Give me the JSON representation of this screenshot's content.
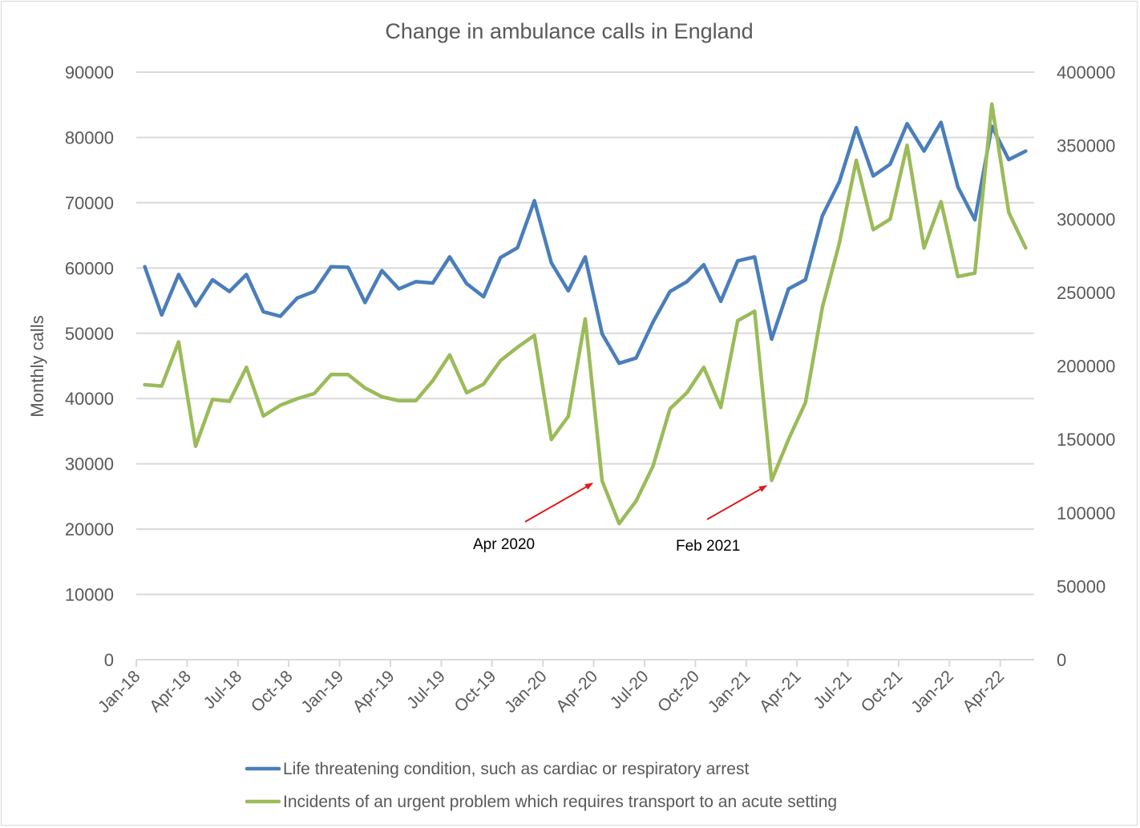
{
  "chart_data": {
    "type": "line",
    "title": "Change in ambulance calls in England",
    "xlabel": "",
    "ylabel": "Monthly calls",
    "y2label": "",
    "ylim": [
      0,
      90000
    ],
    "y2lim": [
      0,
      400000
    ],
    "yticks": [
      "0",
      "10000",
      "20000",
      "30000",
      "40000",
      "50000",
      "60000",
      "70000",
      "80000",
      "90000"
    ],
    "y2ticks": [
      "0",
      "50000",
      "100000",
      "150000",
      "200000",
      "250000",
      "300000",
      "350000",
      "400000"
    ],
    "grid": true,
    "legend": "bottom",
    "xtick_labels": [
      "Jan-18",
      "Apr-18",
      "Jul-18",
      "Oct-18",
      "Jan-19",
      "Apr-19",
      "Jul-19",
      "Oct-19",
      "Jan-20",
      "Apr-20",
      "Jul-20",
      "Oct-20",
      "Jan-21",
      "Apr-21",
      "Jul-21",
      "Oct-21",
      "Jan-22",
      "Apr-22"
    ],
    "x": [
      "Jan-18",
      "Feb-18",
      "Mar-18",
      "Apr-18",
      "May-18",
      "Jun-18",
      "Jul-18",
      "Aug-18",
      "Sep-18",
      "Oct-18",
      "Nov-18",
      "Dec-18",
      "Jan-19",
      "Feb-19",
      "Mar-19",
      "Apr-19",
      "May-19",
      "Jun-19",
      "Jul-19",
      "Aug-19",
      "Sep-19",
      "Oct-19",
      "Nov-19",
      "Dec-19",
      "Jan-20",
      "Feb-20",
      "Mar-20",
      "Apr-20",
      "May-20",
      "Jun-20",
      "Jul-20",
      "Aug-20",
      "Sep-20",
      "Oct-20",
      "Nov-20",
      "Dec-20",
      "Jan-21",
      "Feb-21",
      "Mar-21",
      "Apr-21",
      "May-21",
      "Jun-21",
      "Jul-21",
      "Aug-21",
      "Sep-21",
      "Oct-21",
      "Nov-21",
      "Dec-21",
      "Jan-22",
      "Feb-22",
      "Mar-22",
      "Apr-22",
      "May-22"
    ],
    "series": [
      {
        "name": "Life threatening condition, such as cardiac or respiratory arrest",
        "axis": "left",
        "color": "#4a7ebb",
        "values": [
          60200,
          52800,
          59000,
          54200,
          58200,
          56400,
          59000,
          53300,
          52600,
          55400,
          56400,
          60200,
          60100,
          54700,
          59600,
          56800,
          57900,
          57700,
          61700,
          57600,
          55600,
          61600,
          63100,
          70300,
          60800,
          56500,
          61700,
          49900,
          45400,
          46200,
          51700,
          56400,
          57900,
          60500,
          54900,
          61100,
          61700,
          49100,
          56800,
          58200,
          68000,
          73200,
          81500,
          74100,
          75900,
          82100,
          77900,
          82300,
          72400,
          67400,
          81700,
          76600,
          77900
        ]
      },
      {
        "name": "Incidents of an urgent problem which requires transport to an acute setting",
        "axis": "right",
        "color": "#9bbb59",
        "values": [
          187200,
          186300,
          216300,
          145300,
          177200,
          175900,
          199000,
          165900,
          173200,
          177700,
          181200,
          194100,
          194100,
          185000,
          179000,
          176300,
          176300,
          189900,
          207500,
          181700,
          187600,
          203600,
          212700,
          220800,
          149900,
          165700,
          232000,
          121700,
          92600,
          108000,
          131700,
          170800,
          181700,
          199000,
          171700,
          230800,
          237200,
          122000,
          150000,
          175000,
          239900,
          283600,
          340000,
          292700,
          300000,
          350200,
          280300,
          311800,
          260800,
          263200,
          378200,
          304500,
          280300
        ]
      }
    ],
    "annotations": [
      {
        "text": "Apr 2020",
        "points_to": "Apr-20",
        "series": 1,
        "arrow_color": "#e31a1c"
      },
      {
        "text": "Feb 2021",
        "points_to": "Feb-21",
        "series": 1,
        "arrow_color": "#e31a1c"
      }
    ]
  }
}
